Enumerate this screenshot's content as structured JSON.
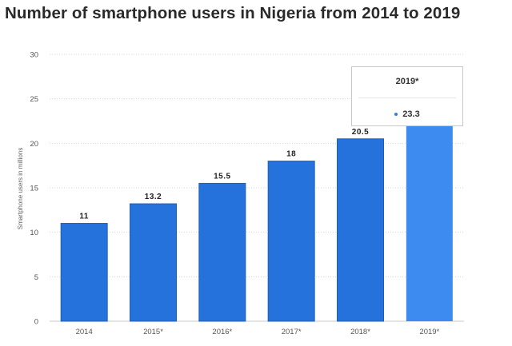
{
  "chart_data": {
    "type": "bar",
    "title": "Number of smartphone users in Nigeria from 2014 to 2019",
    "categories": [
      "2014",
      "2015*",
      "2016*",
      "2017*",
      "2018*",
      "2019*"
    ],
    "values": [
      11,
      13.2,
      15.5,
      18,
      20.5,
      23.3
    ],
    "data_labels": [
      "11",
      "13.2",
      "15.5",
      "18",
      "20.5",
      ""
    ],
    "xlabel": "",
    "ylabel": "Smartphone users in millions",
    "ylim": [
      0,
      30
    ],
    "yticks": [
      0,
      5,
      10,
      15,
      20,
      25,
      30
    ],
    "grid": true,
    "highlighted_index": 5,
    "colors": {
      "bar": "#2672dd",
      "bar_highlight": "#3d8bf0",
      "bar_stroke": "#1b5fb8",
      "grid": "#d4d4d4",
      "axis": "#c9c9c9"
    },
    "tooltip": {
      "category": "2019*",
      "value": "23.3"
    }
  }
}
